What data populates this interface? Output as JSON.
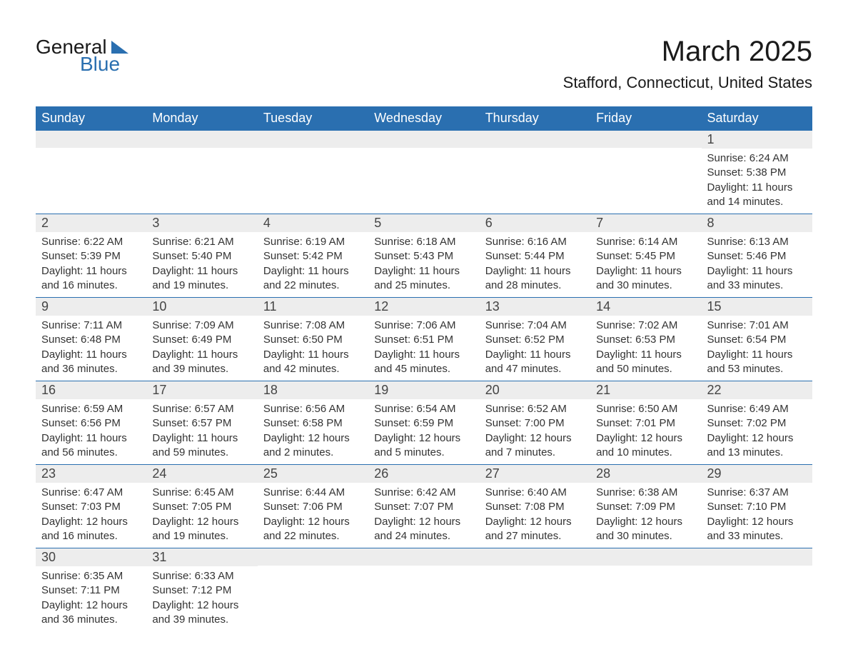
{
  "logo": {
    "general": "General",
    "blue": "Blue"
  },
  "title": "March 2025",
  "location": "Stafford, Connecticut, United States",
  "colors": {
    "header_bg": "#2a6fb0",
    "header_text": "#ffffff",
    "daynum_bg": "#ededed",
    "text": "#333333",
    "rule": "#2a6fb0"
  },
  "weekdays": [
    "Sunday",
    "Monday",
    "Tuesday",
    "Wednesday",
    "Thursday",
    "Friday",
    "Saturday"
  ],
  "weeks": [
    [
      {
        "blank": true
      },
      {
        "blank": true
      },
      {
        "blank": true
      },
      {
        "blank": true
      },
      {
        "blank": true
      },
      {
        "blank": true
      },
      {
        "num": "1",
        "sunrise": "Sunrise: 6:24 AM",
        "sunset": "Sunset: 5:38 PM",
        "daylight": "Daylight: 11 hours and 14 minutes."
      }
    ],
    [
      {
        "num": "2",
        "sunrise": "Sunrise: 6:22 AM",
        "sunset": "Sunset: 5:39 PM",
        "daylight": "Daylight: 11 hours and 16 minutes."
      },
      {
        "num": "3",
        "sunrise": "Sunrise: 6:21 AM",
        "sunset": "Sunset: 5:40 PM",
        "daylight": "Daylight: 11 hours and 19 minutes."
      },
      {
        "num": "4",
        "sunrise": "Sunrise: 6:19 AM",
        "sunset": "Sunset: 5:42 PM",
        "daylight": "Daylight: 11 hours and 22 minutes."
      },
      {
        "num": "5",
        "sunrise": "Sunrise: 6:18 AM",
        "sunset": "Sunset: 5:43 PM",
        "daylight": "Daylight: 11 hours and 25 minutes."
      },
      {
        "num": "6",
        "sunrise": "Sunrise: 6:16 AM",
        "sunset": "Sunset: 5:44 PM",
        "daylight": "Daylight: 11 hours and 28 minutes."
      },
      {
        "num": "7",
        "sunrise": "Sunrise: 6:14 AM",
        "sunset": "Sunset: 5:45 PM",
        "daylight": "Daylight: 11 hours and 30 minutes."
      },
      {
        "num": "8",
        "sunrise": "Sunrise: 6:13 AM",
        "sunset": "Sunset: 5:46 PM",
        "daylight": "Daylight: 11 hours and 33 minutes."
      }
    ],
    [
      {
        "num": "9",
        "sunrise": "Sunrise: 7:11 AM",
        "sunset": "Sunset: 6:48 PM",
        "daylight": "Daylight: 11 hours and 36 minutes."
      },
      {
        "num": "10",
        "sunrise": "Sunrise: 7:09 AM",
        "sunset": "Sunset: 6:49 PM",
        "daylight": "Daylight: 11 hours and 39 minutes."
      },
      {
        "num": "11",
        "sunrise": "Sunrise: 7:08 AM",
        "sunset": "Sunset: 6:50 PM",
        "daylight": "Daylight: 11 hours and 42 minutes."
      },
      {
        "num": "12",
        "sunrise": "Sunrise: 7:06 AM",
        "sunset": "Sunset: 6:51 PM",
        "daylight": "Daylight: 11 hours and 45 minutes."
      },
      {
        "num": "13",
        "sunrise": "Sunrise: 7:04 AM",
        "sunset": "Sunset: 6:52 PM",
        "daylight": "Daylight: 11 hours and 47 minutes."
      },
      {
        "num": "14",
        "sunrise": "Sunrise: 7:02 AM",
        "sunset": "Sunset: 6:53 PM",
        "daylight": "Daylight: 11 hours and 50 minutes."
      },
      {
        "num": "15",
        "sunrise": "Sunrise: 7:01 AM",
        "sunset": "Sunset: 6:54 PM",
        "daylight": "Daylight: 11 hours and 53 minutes."
      }
    ],
    [
      {
        "num": "16",
        "sunrise": "Sunrise: 6:59 AM",
        "sunset": "Sunset: 6:56 PM",
        "daylight": "Daylight: 11 hours and 56 minutes."
      },
      {
        "num": "17",
        "sunrise": "Sunrise: 6:57 AM",
        "sunset": "Sunset: 6:57 PM",
        "daylight": "Daylight: 11 hours and 59 minutes."
      },
      {
        "num": "18",
        "sunrise": "Sunrise: 6:56 AM",
        "sunset": "Sunset: 6:58 PM",
        "daylight": "Daylight: 12 hours and 2 minutes."
      },
      {
        "num": "19",
        "sunrise": "Sunrise: 6:54 AM",
        "sunset": "Sunset: 6:59 PM",
        "daylight": "Daylight: 12 hours and 5 minutes."
      },
      {
        "num": "20",
        "sunrise": "Sunrise: 6:52 AM",
        "sunset": "Sunset: 7:00 PM",
        "daylight": "Daylight: 12 hours and 7 minutes."
      },
      {
        "num": "21",
        "sunrise": "Sunrise: 6:50 AM",
        "sunset": "Sunset: 7:01 PM",
        "daylight": "Daylight: 12 hours and 10 minutes."
      },
      {
        "num": "22",
        "sunrise": "Sunrise: 6:49 AM",
        "sunset": "Sunset: 7:02 PM",
        "daylight": "Daylight: 12 hours and 13 minutes."
      }
    ],
    [
      {
        "num": "23",
        "sunrise": "Sunrise: 6:47 AM",
        "sunset": "Sunset: 7:03 PM",
        "daylight": "Daylight: 12 hours and 16 minutes."
      },
      {
        "num": "24",
        "sunrise": "Sunrise: 6:45 AM",
        "sunset": "Sunset: 7:05 PM",
        "daylight": "Daylight: 12 hours and 19 minutes."
      },
      {
        "num": "25",
        "sunrise": "Sunrise: 6:44 AM",
        "sunset": "Sunset: 7:06 PM",
        "daylight": "Daylight: 12 hours and 22 minutes."
      },
      {
        "num": "26",
        "sunrise": "Sunrise: 6:42 AM",
        "sunset": "Sunset: 7:07 PM",
        "daylight": "Daylight: 12 hours and 24 minutes."
      },
      {
        "num": "27",
        "sunrise": "Sunrise: 6:40 AM",
        "sunset": "Sunset: 7:08 PM",
        "daylight": "Daylight: 12 hours and 27 minutes."
      },
      {
        "num": "28",
        "sunrise": "Sunrise: 6:38 AM",
        "sunset": "Sunset: 7:09 PM",
        "daylight": "Daylight: 12 hours and 30 minutes."
      },
      {
        "num": "29",
        "sunrise": "Sunrise: 6:37 AM",
        "sunset": "Sunset: 7:10 PM",
        "daylight": "Daylight: 12 hours and 33 minutes."
      }
    ],
    [
      {
        "num": "30",
        "sunrise": "Sunrise: 6:35 AM",
        "sunset": "Sunset: 7:11 PM",
        "daylight": "Daylight: 12 hours and 36 minutes."
      },
      {
        "num": "31",
        "sunrise": "Sunrise: 6:33 AM",
        "sunset": "Sunset: 7:12 PM",
        "daylight": "Daylight: 12 hours and 39 minutes."
      },
      {
        "blank": true
      },
      {
        "blank": true
      },
      {
        "blank": true
      },
      {
        "blank": true
      },
      {
        "blank": true
      }
    ]
  ]
}
